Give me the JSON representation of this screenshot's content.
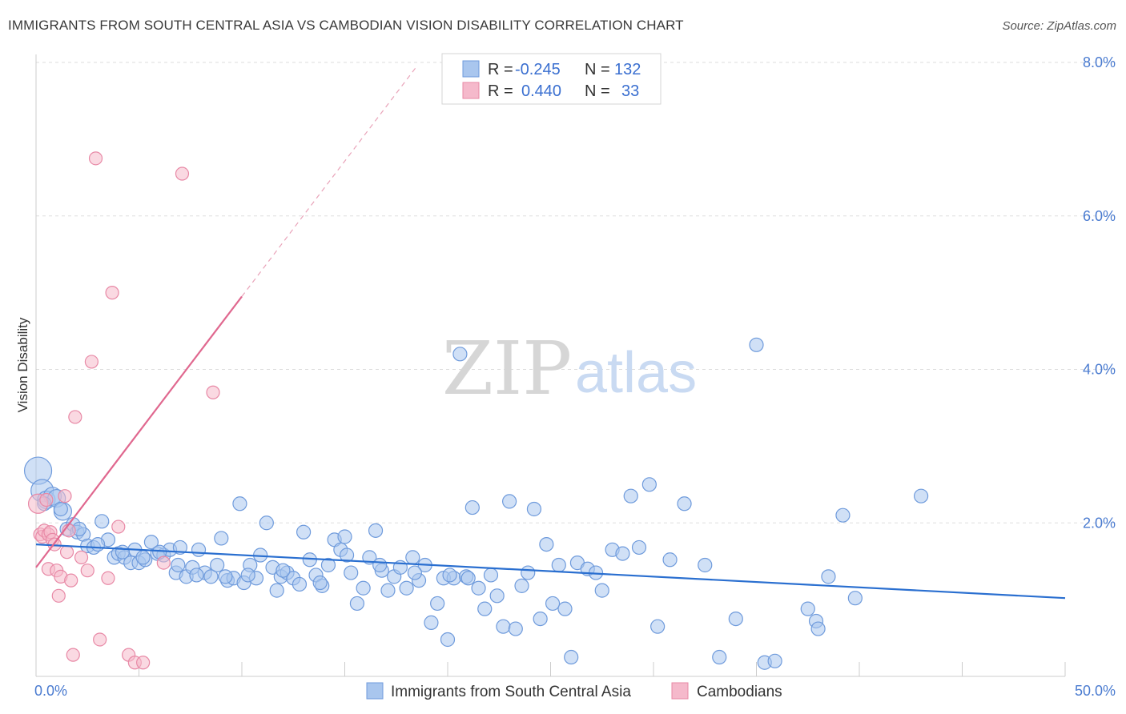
{
  "title": "IMMIGRANTS FROM SOUTH CENTRAL ASIA VS CAMBODIAN VISION DISABILITY CORRELATION CHART",
  "source": "Source: ZipAtlas.com",
  "watermark": {
    "zip": "ZIP",
    "atlas": "atlas"
  },
  "colors": {
    "blue_fill": "#a9c6ee",
    "blue_stroke": "#6f9bdc",
    "blue_line": "#2a6fd0",
    "pink_fill": "#f5b9cb",
    "pink_stroke": "#e889a6",
    "pink_line": "#e0688f",
    "tick_label": "#4a7bd0",
    "grid": "#dddddd"
  },
  "legend": {
    "rows": [
      {
        "r_label": "R =",
        "r_value": "-0.245",
        "n_label": "N =",
        "n_value": "132"
      },
      {
        "r_label": "R =",
        "r_value": "0.440",
        "n_label": "N =",
        "n_value": "33"
      }
    ]
  },
  "chart_data": {
    "type": "scatter",
    "title": "IMMIGRANTS FROM SOUTH CENTRAL ASIA VS CAMBODIAN VISION DISABILITY CORRELATION CHART",
    "xlabel": "",
    "ylabel": "Vision Disability",
    "xlim": [
      0,
      50
    ],
    "ylim": [
      0,
      8
    ],
    "x_tick_labels": [
      "0.0%",
      "50.0%"
    ],
    "y_ticks": [
      2,
      4,
      6,
      8
    ],
    "y_tick_labels": [
      "2.0%",
      "4.0%",
      "6.0%",
      "8.0%"
    ],
    "grid": true,
    "legend_position": "top-center",
    "series": [
      {
        "name": "Immigrants from South Central Asia",
        "color": "#a9c6ee",
        "trend": {
          "x0": 0,
          "y0": 1.72,
          "x1": 50,
          "y1": 1.02
        },
        "points": [
          [
            0.1,
            2.68
          ],
          [
            0.3,
            2.42
          ],
          [
            0.5,
            2.3
          ],
          [
            0.8,
            2.35
          ],
          [
            1.0,
            2.32
          ],
          [
            1.3,
            2.15
          ],
          [
            1.5,
            1.92
          ],
          [
            1.8,
            1.98
          ],
          [
            2.0,
            1.88
          ],
          [
            2.3,
            1.85
          ],
          [
            2.5,
            1.7
          ],
          [
            2.8,
            1.68
          ],
          [
            3.2,
            2.02
          ],
          [
            3.5,
            1.78
          ],
          [
            3.8,
            1.55
          ],
          [
            4.0,
            1.6
          ],
          [
            4.3,
            1.55
          ],
          [
            4.6,
            1.48
          ],
          [
            4.8,
            1.65
          ],
          [
            5.0,
            1.48
          ],
          [
            5.3,
            1.52
          ],
          [
            5.6,
            1.75
          ],
          [
            5.9,
            1.6
          ],
          [
            6.2,
            1.58
          ],
          [
            6.5,
            1.65
          ],
          [
            6.8,
            1.35
          ],
          [
            7.0,
            1.68
          ],
          [
            7.3,
            1.3
          ],
          [
            7.6,
            1.42
          ],
          [
            7.9,
            1.65
          ],
          [
            8.2,
            1.35
          ],
          [
            8.5,
            1.3
          ],
          [
            8.8,
            1.45
          ],
          [
            9.0,
            1.8
          ],
          [
            9.3,
            1.25
          ],
          [
            9.6,
            1.28
          ],
          [
            9.9,
            2.25
          ],
          [
            10.1,
            1.22
          ],
          [
            10.4,
            1.45
          ],
          [
            10.7,
            1.28
          ],
          [
            10.9,
            1.58
          ],
          [
            11.2,
            2.0
          ],
          [
            11.5,
            1.42
          ],
          [
            11.7,
            1.12
          ],
          [
            11.9,
            1.3
          ],
          [
            12.2,
            1.35
          ],
          [
            12.5,
            1.28
          ],
          [
            12.8,
            1.2
          ],
          [
            13.0,
            1.88
          ],
          [
            13.3,
            1.52
          ],
          [
            13.6,
            1.32
          ],
          [
            13.9,
            1.18
          ],
          [
            14.2,
            1.45
          ],
          [
            14.5,
            1.78
          ],
          [
            14.8,
            1.65
          ],
          [
            15.0,
            1.82
          ],
          [
            15.3,
            1.35
          ],
          [
            15.6,
            0.95
          ],
          [
            15.9,
            1.15
          ],
          [
            16.2,
            1.55
          ],
          [
            16.5,
            1.9
          ],
          [
            16.8,
            1.38
          ],
          [
            17.1,
            1.12
          ],
          [
            17.4,
            1.3
          ],
          [
            17.7,
            1.42
          ],
          [
            18.0,
            1.15
          ],
          [
            18.3,
            1.55
          ],
          [
            18.6,
            1.25
          ],
          [
            18.9,
            1.45
          ],
          [
            19.2,
            0.7
          ],
          [
            19.5,
            0.95
          ],
          [
            19.8,
            1.28
          ],
          [
            20.0,
            0.48
          ],
          [
            20.3,
            1.28
          ],
          [
            20.6,
            4.2
          ],
          [
            20.9,
            1.3
          ],
          [
            21.2,
            2.2
          ],
          [
            21.5,
            1.15
          ],
          [
            21.8,
            0.88
          ],
          [
            22.1,
            1.32
          ],
          [
            22.4,
            1.05
          ],
          [
            22.7,
            0.65
          ],
          [
            23.0,
            2.28
          ],
          [
            23.3,
            0.62
          ],
          [
            23.6,
            1.18
          ],
          [
            23.9,
            1.35
          ],
          [
            24.2,
            2.18
          ],
          [
            24.5,
            0.75
          ],
          [
            24.8,
            1.72
          ],
          [
            25.1,
            0.95
          ],
          [
            25.4,
            1.45
          ],
          [
            25.7,
            0.88
          ],
          [
            26.0,
            0.25
          ],
          [
            26.3,
            1.48
          ],
          [
            26.8,
            1.4
          ],
          [
            27.2,
            1.35
          ],
          [
            27.5,
            1.12
          ],
          [
            28.0,
            1.65
          ],
          [
            28.5,
            1.6
          ],
          [
            28.9,
            2.35
          ],
          [
            29.3,
            1.68
          ],
          [
            29.8,
            2.5
          ],
          [
            30.2,
            0.65
          ],
          [
            30.8,
            1.52
          ],
          [
            31.5,
            2.25
          ],
          [
            32.5,
            1.45
          ],
          [
            33.2,
            0.25
          ],
          [
            34.0,
            0.75
          ],
          [
            35.0,
            4.32
          ],
          [
            35.4,
            0.18
          ],
          [
            35.9,
            0.2
          ],
          [
            37.5,
            0.88
          ],
          [
            37.9,
            0.72
          ],
          [
            38.0,
            0.62
          ],
          [
            38.5,
            1.3
          ],
          [
            39.2,
            2.1
          ],
          [
            39.8,
            1.02
          ],
          [
            43.0,
            2.35
          ],
          [
            0.4,
            2.25
          ],
          [
            1.2,
            2.18
          ],
          [
            2.1,
            1.92
          ],
          [
            3.0,
            1.72
          ],
          [
            4.2,
            1.62
          ],
          [
            5.2,
            1.55
          ],
          [
            6.0,
            1.62
          ],
          [
            6.9,
            1.45
          ],
          [
            7.8,
            1.32
          ],
          [
            9.2,
            1.3
          ],
          [
            10.3,
            1.32
          ],
          [
            12.0,
            1.38
          ],
          [
            13.8,
            1.22
          ],
          [
            15.1,
            1.58
          ],
          [
            16.7,
            1.45
          ],
          [
            18.4,
            1.35
          ],
          [
            20.1,
            1.32
          ],
          [
            21.0,
            1.28
          ]
        ]
      },
      {
        "name": "Cambodians",
        "color": "#f5b9cb",
        "trend": {
          "x0": 0,
          "y0": 1.42,
          "x1": 10,
          "y1": 4.95,
          "x_dash_end": 18.5,
          "y_dash_end": 7.95
        },
        "points": [
          [
            0.1,
            2.25
          ],
          [
            0.2,
            1.85
          ],
          [
            0.3,
            1.82
          ],
          [
            0.4,
            1.9
          ],
          [
            0.6,
            1.85
          ],
          [
            0.7,
            1.88
          ],
          [
            0.8,
            1.78
          ],
          [
            0.9,
            1.72
          ],
          [
            0.6,
            1.4
          ],
          [
            1.0,
            1.38
          ],
          [
            1.1,
            1.05
          ],
          [
            1.2,
            1.3
          ],
          [
            1.4,
            2.35
          ],
          [
            1.5,
            1.62
          ],
          [
            1.7,
            1.25
          ],
          [
            1.8,
            0.28
          ],
          [
            1.9,
            3.38
          ],
          [
            2.2,
            1.55
          ],
          [
            2.5,
            1.38
          ],
          [
            2.7,
            4.1
          ],
          [
            2.9,
            6.75
          ],
          [
            3.1,
            0.48
          ],
          [
            3.5,
            1.28
          ],
          [
            3.7,
            5.0
          ],
          [
            4.0,
            1.95
          ],
          [
            4.5,
            0.28
          ],
          [
            4.8,
            0.18
          ],
          [
            5.2,
            0.18
          ],
          [
            6.2,
            1.48
          ],
          [
            7.1,
            6.55
          ],
          [
            8.6,
            3.7
          ],
          [
            1.6,
            1.9
          ],
          [
            0.5,
            2.3
          ]
        ]
      }
    ]
  },
  "bottom_legend": {
    "items": [
      {
        "label": "Immigrants from South Central Asia"
      },
      {
        "label": "Cambodians"
      }
    ]
  }
}
